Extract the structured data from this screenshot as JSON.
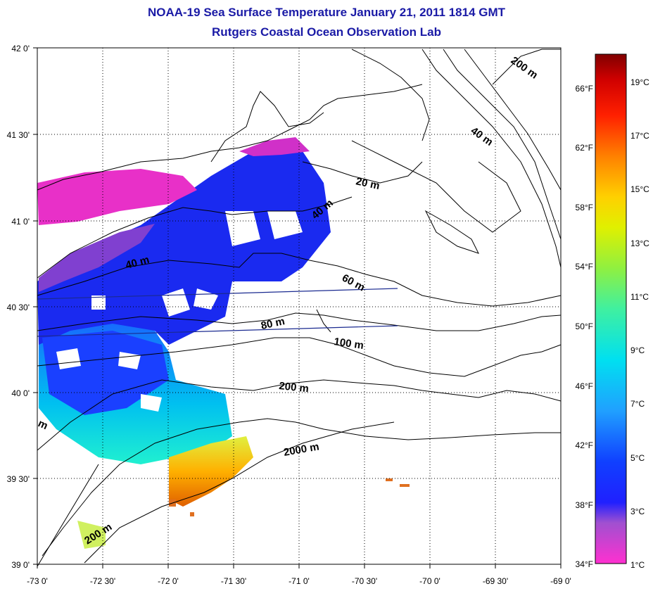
{
  "title": {
    "line1": "NOAA-19 Sea Surface Temperature January 21, 2011 1814 GMT",
    "line2": "Rutgers Coastal Ocean Observation Lab"
  },
  "map": {
    "lat_labels": [
      "42 0'",
      "41 30'",
      "41 0'",
      "40 30'",
      "40 0'",
      "39 30'",
      "39 0'"
    ],
    "lon_labels": [
      "-73 0'",
      "-72 30'",
      "-72 0'",
      "-71 30'",
      "-71 0'",
      "-70 30'",
      "-70 0'",
      "-69 30'",
      "-69 0'"
    ],
    "contour_labels": {
      "m20": "20 m",
      "m40a": "40 m",
      "m40b": "40 m",
      "m40c": "40 m",
      "m60": "60 m",
      "m80": "80 m",
      "m100": "100 m",
      "m200a": "200 m",
      "m200b": "200 m",
      "m200c": "200 m",
      "m2000": "2000 m",
      "m_partial": "m"
    }
  },
  "colorbar": {
    "fahrenheit": [
      "66°F",
      "62°F",
      "58°F",
      "54°F",
      "50°F",
      "46°F",
      "42°F",
      "38°F",
      "34°F"
    ],
    "celsius": [
      "19°C",
      "17°C",
      "15°C",
      "13°C",
      "11°C",
      "9°C",
      "7°C",
      "5°C",
      "3°C",
      "1°C"
    ],
    "colors": {
      "top": "#8b0000",
      "red": "#ff0000",
      "orange": "#ff8000",
      "yellow": "#ffff00",
      "green": "#80ff40",
      "cyan": "#00ffff",
      "sky": "#00a0ff",
      "blue": "#0000ff",
      "violet": "#8040c0",
      "magenta": "#ff00ff"
    }
  }
}
